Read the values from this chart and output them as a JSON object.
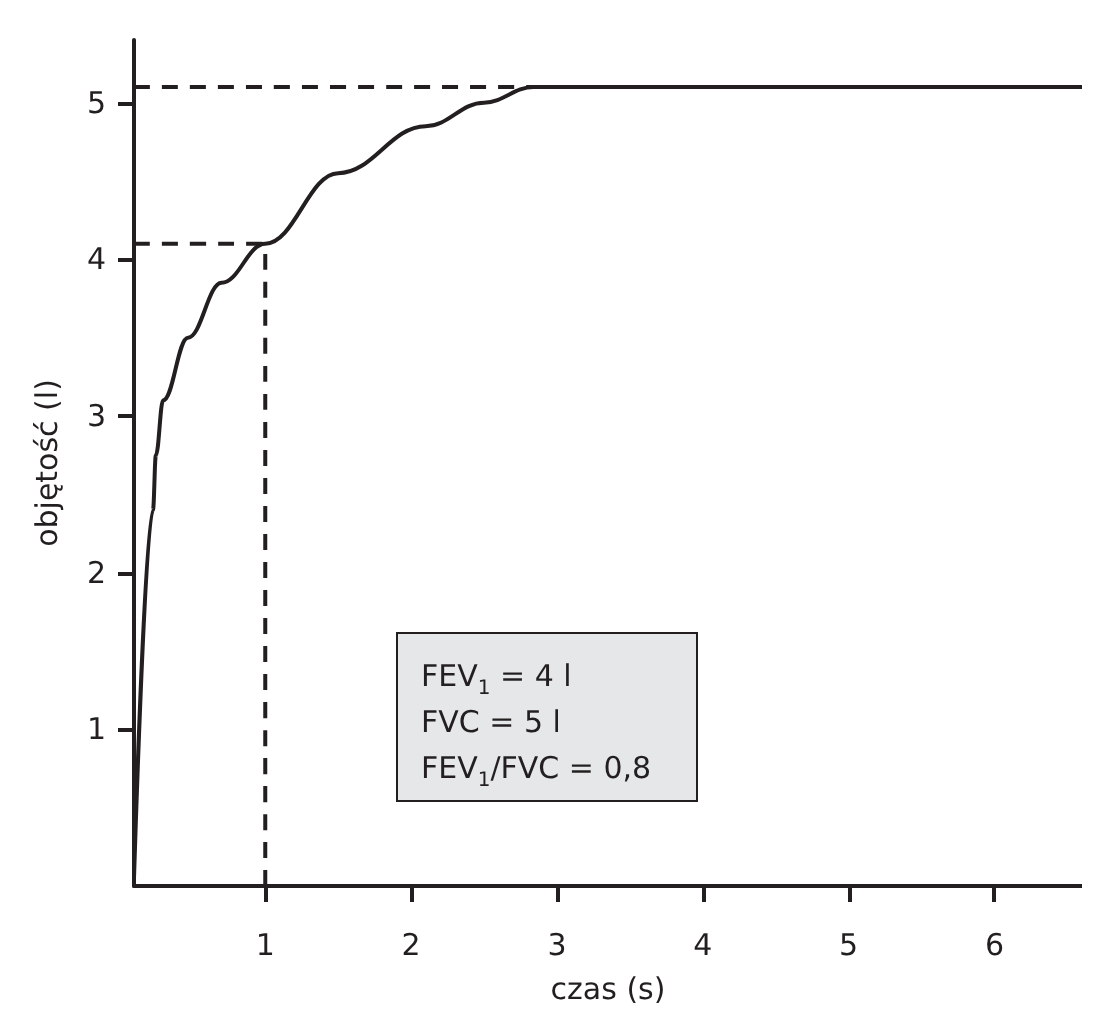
{
  "chart_data": {
    "type": "line",
    "xlabel": "czas (s)",
    "ylabel": "objętość (l)",
    "xlim": [
      0.1,
      6.6
    ],
    "ylim": [
      0,
      5.4
    ],
    "xticks": [
      1,
      2,
      3,
      4,
      5,
      6
    ],
    "yticks": [
      1,
      2,
      3,
      4,
      5
    ],
    "marker": "none",
    "series": [
      {
        "color": "#231f20",
        "x": [
          0.1,
          0.23,
          0.25,
          0.3,
          0.47,
          0.7,
          1.0,
          1.5,
          2.1,
          2.5,
          2.84,
          6.6
        ],
        "values": [
          0.05,
          2.4,
          2.75,
          3.1,
          3.5,
          3.85,
          4.1,
          4.55,
          4.85,
          5.0,
          5.1,
          5.1
        ],
        "line_style": "solid"
      },
      {
        "color": "#231f20",
        "x": [
          0.1,
          2.84
        ],
        "values": [
          5.1,
          5.1
        ],
        "line_style": "dashed"
      },
      {
        "color": "#231f20",
        "x": [
          0.1,
          1.0
        ],
        "values": [
          4.1,
          4.1
        ],
        "line_style": "dashed"
      },
      {
        "color": "#231f20",
        "x": [
          1.0,
          1.0
        ],
        "values": [
          0,
          4.1
        ],
        "line_style": "dashed"
      }
    ],
    "annotations": [
      "FEV$_{1}$ = 4 l",
      "FVC = 5 l",
      "FEV$_{1}$/FVC = 0,8"
    ]
  }
}
